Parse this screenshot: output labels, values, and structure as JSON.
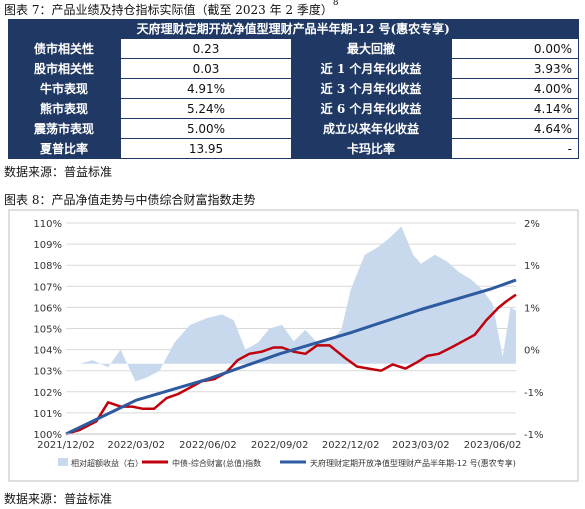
{
  "figure7": {
    "caption": "图表 7：产品业绩及持仓指标实际值（截至 2023 年 2 季度）",
    "footnote_mark": "8",
    "table_title": "天府理财定期开放净值型理财产品半年期-12 号(惠农专享)",
    "rows": [
      {
        "label": "债市相关性",
        "value": "0.23",
        "label2": "最大回撤",
        "value2": "0.00%"
      },
      {
        "label": "股市相关性",
        "value": "0.03",
        "label2": "近 1 个月年化收益",
        "value2": "3.93%"
      },
      {
        "label": "牛市表现",
        "value": "4.91%",
        "label2": "近 3 个月年化收益",
        "value2": "4.00%"
      },
      {
        "label": "熊市表现",
        "value": "5.24%",
        "label2": "近 6 个月年化收益",
        "value2": "4.14%"
      },
      {
        "label": "震荡市表现",
        "value": "5.00%",
        "label2": "成立以来年化收益",
        "value2": "4.64%"
      },
      {
        "label": "夏普比率",
        "value": "13.95",
        "label2": "卡玛比率",
        "value2": "-"
      }
    ],
    "source": "数据来源：普益标准"
  },
  "figure8": {
    "caption": "图表 8：产品净值走势与中债综合财富指数走势",
    "source": "数据来源：普益标准"
  },
  "colors": {
    "table_header": "#1f3864",
    "relative_area": "#c8d9ee",
    "bond_index_line": "#c0000b",
    "product_line": "#2e5aa0"
  },
  "chart_data": {
    "type": "line",
    "x_tick_labels": [
      "2021/12/02",
      "2022/03/02",
      "2022/06/02",
      "2022/09/02",
      "2022/12/02",
      "2023/03/02",
      "2023/06/02"
    ],
    "x_start": "2021/12/02",
    "x_end": "2023/07/02",
    "left_axis": {
      "ylim": [
        100,
        110
      ],
      "tick_labels": [
        "100%",
        "101%",
        "102%",
        "103%",
        "104%",
        "105%",
        "106%",
        "107%",
        "108%",
        "109%",
        "110%"
      ]
    },
    "right_axis": {
      "ylim": [
        -1,
        2
      ],
      "tick_labels": [
        "-1%",
        "-1%",
        "0%",
        "1%",
        "1%",
        "2%"
      ]
    },
    "grid": true,
    "legend_position": "bottom",
    "series": [
      {
        "name": "相对超额收益（右）",
        "axis": "right",
        "kind": "area",
        "x": [
          "2021/12/02",
          "2021/12/20",
          "2022/01/05",
          "2022/01/25",
          "2022/02/10",
          "2022/03/01",
          "2022/03/15",
          "2022/04/01",
          "2022/04/20",
          "2022/05/10",
          "2022/06/01",
          "2022/06/20",
          "2022/07/05",
          "2022/07/20",
          "2022/08/05",
          "2022/08/20",
          "2022/09/05",
          "2022/09/20",
          "2022/10/05",
          "2022/10/20",
          "2022/11/05",
          "2022/11/20",
          "2022/12/02",
          "2022/12/20",
          "2023/01/05",
          "2023/01/20",
          "2023/02/05",
          "2023/02/20",
          "2023/03/02",
          "2023/03/20",
          "2023/04/05",
          "2023/04/20",
          "2023/05/05",
          "2023/05/20",
          "2023/06/02",
          "2023/06/15",
          "2023/06/25",
          "2023/07/02"
        ],
        "values": [
          0.0,
          0.0,
          0.05,
          -0.05,
          0.2,
          -0.25,
          -0.2,
          -0.1,
          0.3,
          0.55,
          0.65,
          0.7,
          0.62,
          0.2,
          0.3,
          0.5,
          0.55,
          0.32,
          0.48,
          0.3,
          0.32,
          0.48,
          1.05,
          1.55,
          1.65,
          1.78,
          1.95,
          1.55,
          1.42,
          1.55,
          1.45,
          1.3,
          1.2,
          1.05,
          0.85,
          0.1,
          0.8,
          0.75
        ]
      },
      {
        "name": "中债-综合财富(总值)指数",
        "axis": "left",
        "kind": "line",
        "x": [
          "2021/12/02",
          "2021/12/20",
          "2022/01/10",
          "2022/01/25",
          "2022/02/10",
          "2022/02/25",
          "2022/03/10",
          "2022/03/25",
          "2022/04/10",
          "2022/04/25",
          "2022/05/10",
          "2022/05/25",
          "2022/06/10",
          "2022/06/25",
          "2022/07/10",
          "2022/07/25",
          "2022/08/10",
          "2022/08/25",
          "2022/09/05",
          "2022/09/20",
          "2022/10/05",
          "2022/10/20",
          "2022/11/05",
          "2022/11/15",
          "2022/11/25",
          "2022/12/10",
          "2022/12/25",
          "2023/01/10",
          "2023/01/25",
          "2023/02/10",
          "2023/02/25",
          "2023/03/10",
          "2023/03/25",
          "2023/04/10",
          "2023/04/25",
          "2023/05/10",
          "2023/05/25",
          "2023/06/10",
          "2023/06/20",
          "2023/06/28",
          "2023/07/02"
        ],
        "values": [
          100.0,
          100.2,
          100.6,
          101.5,
          101.3,
          101.3,
          101.2,
          101.2,
          101.7,
          101.9,
          102.2,
          102.5,
          102.6,
          102.9,
          103.5,
          103.8,
          103.9,
          104.1,
          104.1,
          103.9,
          103.8,
          104.2,
          104.2,
          103.9,
          103.6,
          103.2,
          103.1,
          103.0,
          103.3,
          103.1,
          103.4,
          103.7,
          103.8,
          104.1,
          104.4,
          104.7,
          105.4,
          106.0,
          106.3,
          106.5,
          106.6
        ]
      },
      {
        "name": "天府理财定期开放净值型理财产品半年期-12 号(惠农专享)",
        "axis": "left",
        "kind": "line",
        "x": [
          "2021/12/02",
          "2022/03/02",
          "2022/06/02",
          "2022/09/02",
          "2022/12/02",
          "2023/03/02",
          "2023/06/02",
          "2023/07/02"
        ],
        "values": [
          100.0,
          101.6,
          102.6,
          103.8,
          104.8,
          105.9,
          106.9,
          107.3
        ]
      }
    ]
  }
}
